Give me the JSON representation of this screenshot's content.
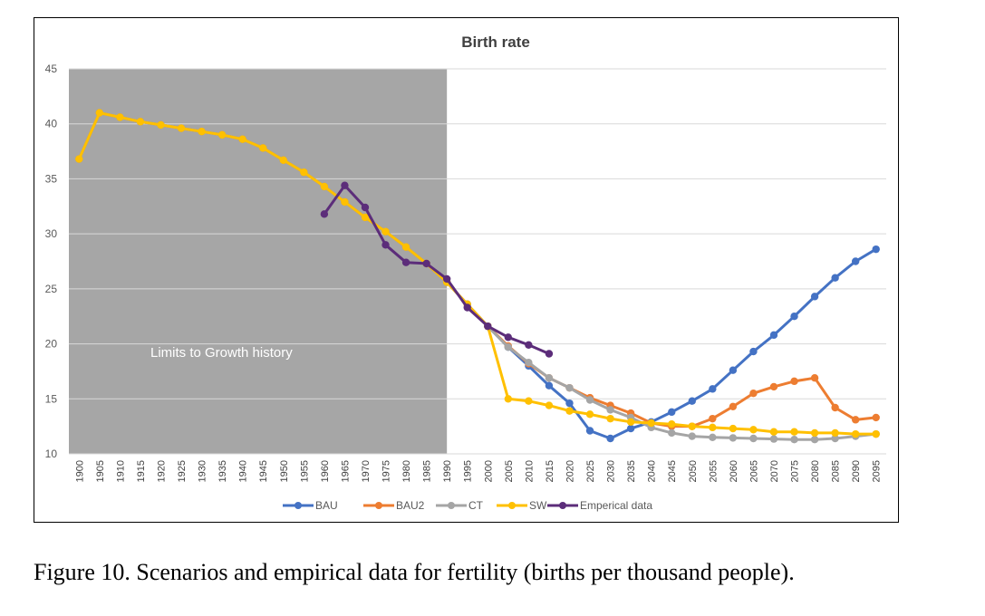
{
  "caption": "Figure 10. Scenarios and empirical data for fertility (births per thousand people).",
  "chart_data": {
    "type": "line",
    "title": "Birth rate",
    "xlabel": "",
    "ylabel": "",
    "ylim": [
      10,
      45
    ],
    "yticks": [
      10,
      15,
      20,
      25,
      30,
      35,
      40,
      45
    ],
    "grid": true,
    "legend_position": "bottom",
    "x": [
      1900,
      1905,
      1910,
      1915,
      1920,
      1925,
      1930,
      1935,
      1940,
      1945,
      1950,
      1955,
      1960,
      1965,
      1970,
      1975,
      1980,
      1985,
      1990,
      1995,
      2000,
      2005,
      2010,
      2015,
      2020,
      2025,
      2030,
      2035,
      2040,
      2045,
      2050,
      2055,
      2060,
      2065,
      2070,
      2075,
      2080,
      2085,
      2090,
      2095
    ],
    "shaded_region": {
      "x_from": 1900,
      "x_to": 1990,
      "label": "Limits to Growth history",
      "color": "#a6a6a6"
    },
    "series": [
      {
        "name": "BAU",
        "color": "#4472c4",
        "values": [
          36.8,
          41.0,
          40.6,
          40.2,
          39.9,
          39.6,
          39.3,
          39.0,
          38.6,
          37.8,
          36.7,
          35.6,
          34.3,
          32.9,
          31.5,
          30.2,
          28.8,
          27.3,
          25.6,
          23.6,
          21.6,
          19.7,
          18.0,
          16.2,
          14.6,
          12.1,
          11.4,
          12.3,
          12.9,
          13.8,
          14.8,
          15.9,
          17.6,
          19.3,
          20.8,
          22.5,
          24.3,
          26.0,
          27.5,
          28.6
        ]
      },
      {
        "name": "BAU2",
        "color": "#ed7d31",
        "values": [
          36.8,
          41.0,
          40.6,
          40.2,
          39.9,
          39.6,
          39.3,
          39.0,
          38.6,
          37.8,
          36.7,
          35.6,
          34.3,
          32.9,
          31.5,
          30.2,
          28.8,
          27.3,
          25.6,
          23.6,
          21.6,
          19.8,
          18.2,
          16.9,
          16.0,
          15.1,
          14.4,
          13.7,
          12.8,
          12.5,
          12.5,
          13.2,
          14.3,
          15.5,
          16.1,
          16.6,
          16.9,
          14.2,
          13.1,
          13.3
        ]
      },
      {
        "name": "CT",
        "color": "#a5a5a5",
        "values": [
          36.8,
          41.0,
          40.6,
          40.2,
          39.9,
          39.6,
          39.3,
          39.0,
          38.6,
          37.8,
          36.7,
          35.6,
          34.3,
          32.9,
          31.5,
          30.2,
          28.8,
          27.3,
          25.6,
          23.6,
          21.6,
          19.7,
          18.3,
          16.9,
          16.0,
          14.9,
          14.0,
          13.3,
          12.4,
          11.9,
          11.6,
          11.5,
          11.45,
          11.4,
          11.35,
          11.3,
          11.3,
          11.4,
          11.6,
          11.8
        ]
      },
      {
        "name": "SW",
        "color": "#ffc000",
        "values": [
          36.8,
          41.0,
          40.6,
          40.2,
          39.9,
          39.6,
          39.3,
          39.0,
          38.6,
          37.8,
          36.7,
          35.6,
          34.3,
          32.9,
          31.5,
          30.2,
          28.8,
          27.3,
          25.6,
          23.6,
          21.6,
          15.0,
          14.8,
          14.4,
          13.9,
          13.6,
          13.2,
          12.9,
          12.8,
          12.7,
          12.5,
          12.4,
          12.3,
          12.2,
          12.0,
          12.0,
          11.9,
          11.9,
          11.8,
          11.8
        ]
      },
      {
        "name": "Emperical data",
        "color": "#5c2d7a",
        "values": [
          null,
          null,
          null,
          null,
          null,
          null,
          null,
          null,
          null,
          null,
          null,
          null,
          31.8,
          34.4,
          32.4,
          29.0,
          27.4,
          27.3,
          25.9,
          23.3,
          21.6,
          20.6,
          19.9,
          19.1,
          null,
          null,
          null,
          null,
          null,
          null,
          null,
          null,
          null,
          null,
          null,
          null,
          null,
          null,
          null,
          null
        ]
      }
    ]
  }
}
